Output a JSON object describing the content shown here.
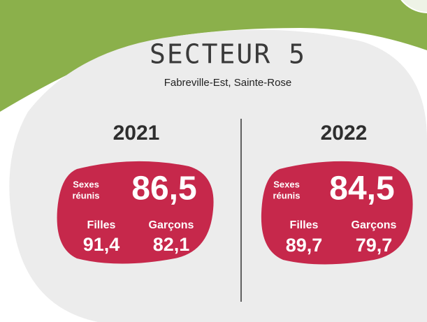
{
  "title": "SECTEUR 5",
  "subtitle": "Fabreville-Est, Sainte-Rose",
  "panels": [
    {
      "year": "2021",
      "combined_label": [
        "Sexes",
        "réunis"
      ],
      "combined_value": "86,5",
      "girls_label": "Filles",
      "girls_value": "91,4",
      "boys_label": "Garçons",
      "boys_value": "82,1"
    },
    {
      "year": "2022",
      "combined_label": [
        "Sexes",
        "réunis"
      ],
      "combined_value": "84,5",
      "girls_label": "Filles",
      "girls_value": "89,7",
      "boys_label": "Garçons",
      "boys_value": "79,7"
    }
  ]
}
